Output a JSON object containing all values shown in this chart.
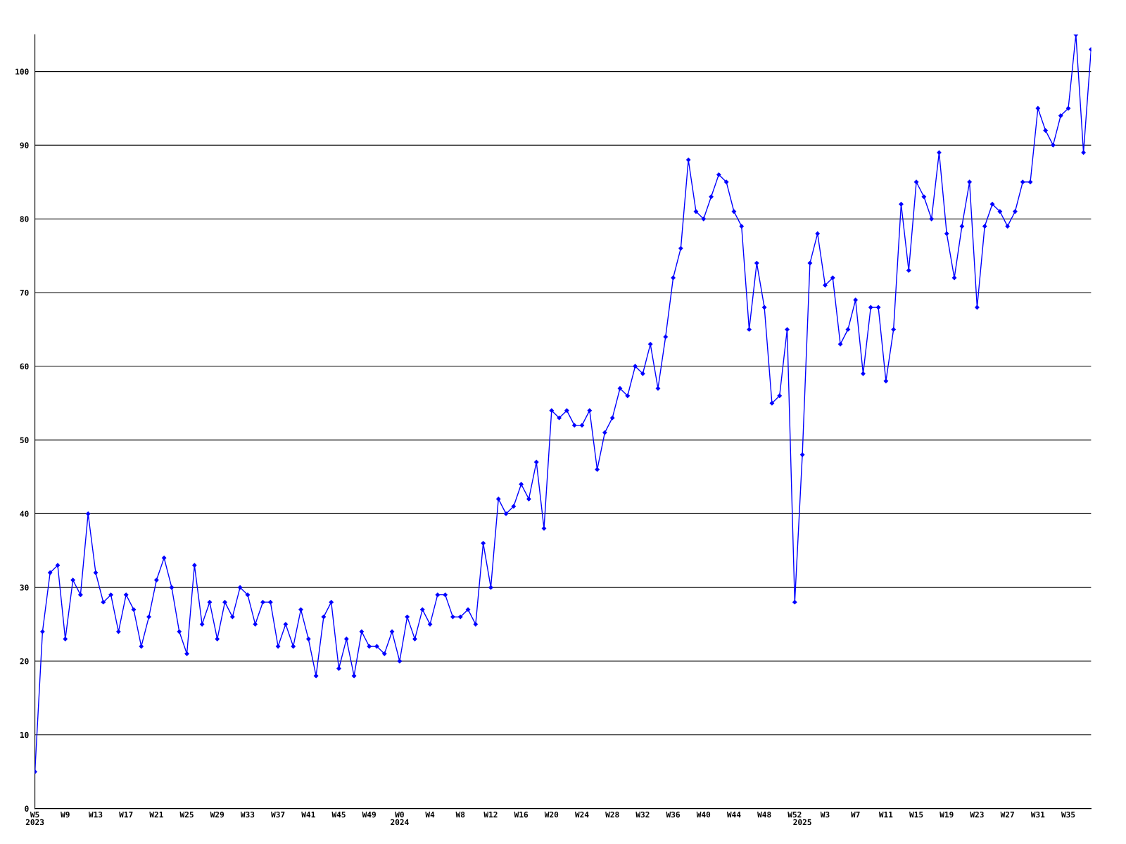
{
  "chart_data": {
    "type": "line",
    "categories": [
      "W5\n2023",
      null,
      null,
      null,
      "W9",
      null,
      null,
      null,
      "W13",
      null,
      null,
      null,
      "W17",
      null,
      null,
      null,
      "W21",
      null,
      null,
      null,
      "W25",
      null,
      null,
      null,
      "W29",
      null,
      null,
      null,
      "W33",
      null,
      null,
      null,
      "W37",
      null,
      null,
      null,
      "W41",
      null,
      null,
      null,
      "W45",
      null,
      null,
      null,
      "W49",
      null,
      null,
      null,
      "W0\n2024",
      null,
      null,
      null,
      "W4",
      null,
      null,
      null,
      "W8",
      null,
      null,
      null,
      "W12",
      null,
      null,
      null,
      "W16",
      null,
      null,
      null,
      "W20",
      null,
      null,
      null,
      "W24",
      null,
      null,
      null,
      "W28",
      null,
      null,
      null,
      "W32",
      null,
      null,
      null,
      "W36",
      null,
      null,
      null,
      "W40",
      null,
      null,
      null,
      "W44",
      null,
      null,
      null,
      "W48",
      null,
      null,
      null,
      "W52",
      "\n2025",
      null,
      null,
      "W3",
      null,
      null,
      null,
      "W7",
      null,
      null,
      null,
      "W11",
      null,
      null,
      null,
      "W15",
      null,
      null,
      null,
      "W19",
      null,
      null,
      null,
      "W23",
      null,
      null,
      null,
      "W27",
      null,
      null,
      null,
      "W31",
      null,
      null,
      null,
      "W35",
      null,
      null,
      null
    ],
    "series": [
      {
        "color": "#0000ff",
        "values": [
          5,
          24,
          32,
          33,
          23,
          31,
          29,
          40,
          32,
          28,
          29,
          24,
          29,
          27,
          22,
          26,
          31,
          34,
          30,
          24,
          21,
          33,
          25,
          28,
          23,
          28,
          26,
          30,
          29,
          25,
          28,
          28,
          22,
          25,
          22,
          27,
          23,
          18,
          26,
          28,
          19,
          23,
          18,
          24,
          22,
          22,
          21,
          24,
          20,
          26,
          23,
          27,
          25,
          29,
          29,
          26,
          26,
          27,
          25,
          36,
          30,
          42,
          40,
          41,
          44,
          42,
          47,
          38,
          54,
          53,
          54,
          52,
          52,
          54,
          46,
          51,
          53,
          57,
          56,
          60,
          59,
          63,
          57,
          64,
          72,
          76,
          88,
          81,
          80,
          83,
          86,
          85,
          81,
          79,
          65,
          74,
          68,
          55,
          56,
          65,
          28,
          48,
          74,
          78,
          71,
          72,
          63,
          65,
          69,
          59,
          68,
          68,
          58,
          65,
          82,
          73,
          85,
          83,
          80,
          89,
          78,
          72,
          79,
          85,
          68,
          79,
          82,
          81,
          79,
          81,
          85,
          85,
          95,
          92,
          90,
          94,
          95,
          105,
          89,
          103
        ]
      }
    ],
    "ylim": [
      0,
      105
    ],
    "yticks": [
      0,
      10,
      20,
      30,
      40,
      50,
      60,
      70,
      80,
      90,
      100
    ],
    "grid": "y",
    "marker": "diamond",
    "line_style": "solid"
  }
}
